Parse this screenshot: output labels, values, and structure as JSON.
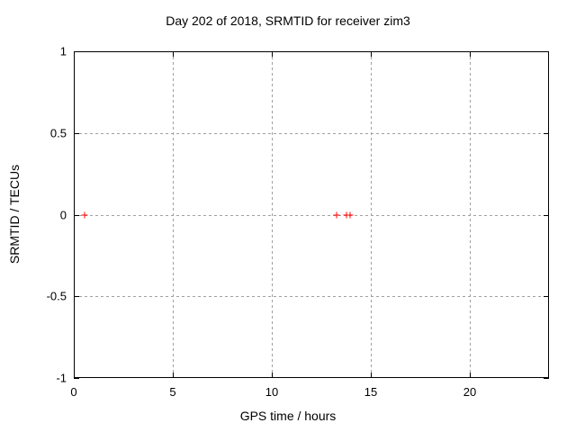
{
  "chart_data": {
    "type": "scatter",
    "title": "Day 202 of 2018, SRMTID for receiver zim3",
    "xlabel": "GPS time / hours",
    "ylabel": "SRMTID / TECUs",
    "xlim": [
      0,
      24
    ],
    "ylim": [
      -1,
      1
    ],
    "x_ticks": [
      0,
      5,
      10,
      15,
      20
    ],
    "y_ticks": [
      -1,
      -0.5,
      0,
      0.5,
      1
    ],
    "grid": true,
    "legend": "none",
    "marker": "plus",
    "marker_color": "#ff0000",
    "grid_color": "#a0a0a0",
    "frame_color": "#000000",
    "points": [
      {
        "x": 0.55,
        "y": 0.0
      },
      {
        "x": 13.25,
        "y": 0.0
      },
      {
        "x": 13.75,
        "y": 0.0
      },
      {
        "x": 13.95,
        "y": 0.0
      }
    ]
  }
}
